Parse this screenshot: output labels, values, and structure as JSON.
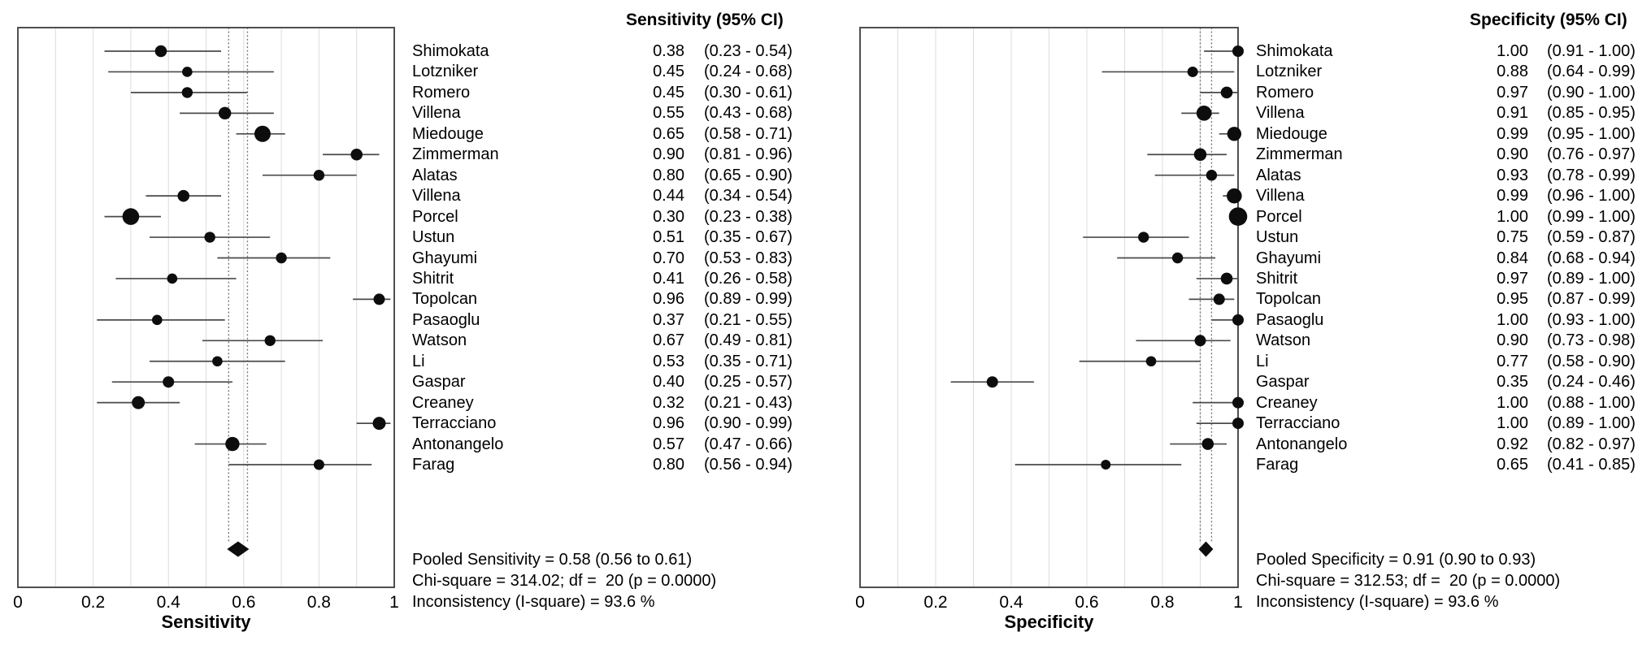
{
  "chart_data": [
    {
      "type": "forest",
      "panel": "sensitivity",
      "header": "Sensitivity (95% CI)",
      "xlabel": "Sensitivity",
      "xlim": [
        0,
        1
      ],
      "grid": true,
      "gridlines": [
        0.1,
        0.2,
        0.3,
        0.4,
        0.5,
        0.6,
        0.7,
        0.8,
        0.9
      ],
      "xticks": [
        {
          "value": 0,
          "label": "0"
        },
        {
          "value": 0.2,
          "label": "0.2"
        },
        {
          "value": 0.4,
          "label": "0.4"
        },
        {
          "value": 0.6,
          "label": "0.6"
        },
        {
          "value": 0.8,
          "label": "0.8"
        },
        {
          "value": 1,
          "label": "1"
        }
      ],
      "pooled": {
        "estimate": 0.58,
        "ci_low": 0.56,
        "ci_high": 0.61
      },
      "stats_lines": [
        "Pooled Sensitivity = 0.58 (0.56 to 0.61)",
        "Chi-square = 314.02; df =  20 (p = 0.0000)",
        "Inconsistency (I-square) = 93.6 %"
      ],
      "studies": [
        {
          "name": "Shimokata",
          "estimate": 0.38,
          "ci_low": 0.23,
          "ci_high": 0.54,
          "estimate_label": "0.38",
          "ci_label": "(0.23 - 0.54)",
          "marker_r": 7.3
        },
        {
          "name": "Lotzniker",
          "estimate": 0.45,
          "ci_low": 0.24,
          "ci_high": 0.68,
          "estimate_label": "0.45",
          "ci_label": "(0.24 - 0.68)",
          "marker_r": 6.3
        },
        {
          "name": "Romero",
          "estimate": 0.45,
          "ci_low": 0.3,
          "ci_high": 0.61,
          "estimate_label": "0.45",
          "ci_label": "(0.30 - 0.61)",
          "marker_r": 6.7
        },
        {
          "name": "Villena",
          "estimate": 0.55,
          "ci_low": 0.43,
          "ci_high": 0.68,
          "estimate_label": "0.55",
          "ci_label": "(0.43 - 0.68)",
          "marker_r": 7.7
        },
        {
          "name": "Miedouge",
          "estimate": 0.65,
          "ci_low": 0.58,
          "ci_high": 0.71,
          "estimate_label": "0.65",
          "ci_label": "(0.58 - 0.71)",
          "marker_r": 10
        },
        {
          "name": "Zimmerman",
          "estimate": 0.9,
          "ci_low": 0.81,
          "ci_high": 0.96,
          "estimate_label": "0.90",
          "ci_label": "(0.81 - 0.96)",
          "marker_r": 7.3
        },
        {
          "name": "Alatas",
          "estimate": 0.8,
          "ci_low": 0.65,
          "ci_high": 0.9,
          "estimate_label": "0.80",
          "ci_label": "(0.65 - 0.90)",
          "marker_r": 6.7
        },
        {
          "name": "Villena",
          "estimate": 0.44,
          "ci_low": 0.34,
          "ci_high": 0.54,
          "estimate_label": "0.44",
          "ci_label": "(0.34 - 0.54)",
          "marker_r": 7.3
        },
        {
          "name": "Porcel",
          "estimate": 0.3,
          "ci_low": 0.23,
          "ci_high": 0.38,
          "estimate_label": "0.30",
          "ci_label": "(0.23 - 0.38)",
          "marker_r": 10.3
        },
        {
          "name": "Ustun",
          "estimate": 0.51,
          "ci_low": 0.35,
          "ci_high": 0.67,
          "estimate_label": "0.51",
          "ci_label": "(0.35 - 0.67)",
          "marker_r": 6.7
        },
        {
          "name": "Ghayumi",
          "estimate": 0.7,
          "ci_low": 0.53,
          "ci_high": 0.83,
          "estimate_label": "0.70",
          "ci_label": "(0.53 - 0.83)",
          "marker_r": 6.7
        },
        {
          "name": "Shitrit",
          "estimate": 0.41,
          "ci_low": 0.26,
          "ci_high": 0.58,
          "estimate_label": "0.41",
          "ci_label": "(0.26 - 0.58)",
          "marker_r": 6.3
        },
        {
          "name": "Topolcan",
          "estimate": 0.96,
          "ci_low": 0.89,
          "ci_high": 0.99,
          "estimate_label": "0.96",
          "ci_label": "(0.89 - 0.99)",
          "marker_r": 7
        },
        {
          "name": "Pasaoglu",
          "estimate": 0.37,
          "ci_low": 0.21,
          "ci_high": 0.55,
          "estimate_label": "0.37",
          "ci_label": "(0.21 - 0.55)",
          "marker_r": 6.3
        },
        {
          "name": "Watson",
          "estimate": 0.67,
          "ci_low": 0.49,
          "ci_high": 0.81,
          "estimate_label": "0.67",
          "ci_label": "(0.49 - 0.81)",
          "marker_r": 6.7
        },
        {
          "name": "Li",
          "estimate": 0.53,
          "ci_low": 0.35,
          "ci_high": 0.71,
          "estimate_label": "0.53",
          "ci_label": "(0.35 - 0.71)",
          "marker_r": 6.3
        },
        {
          "name": "Gaspar",
          "estimate": 0.4,
          "ci_low": 0.25,
          "ci_high": 0.57,
          "estimate_label": "0.40",
          "ci_label": "(0.25 - 0.57)",
          "marker_r": 7
        },
        {
          "name": "Creaney",
          "estimate": 0.32,
          "ci_low": 0.21,
          "ci_high": 0.43,
          "estimate_label": "0.32",
          "ci_label": "(0.21 - 0.43)",
          "marker_r": 8
        },
        {
          "name": "Terracciano",
          "estimate": 0.96,
          "ci_low": 0.9,
          "ci_high": 0.99,
          "estimate_label": "0.96",
          "ci_label": "(0.90 - 0.99)",
          "marker_r": 8
        },
        {
          "name": "Antonangelo",
          "estimate": 0.57,
          "ci_low": 0.47,
          "ci_high": 0.66,
          "estimate_label": "0.57",
          "ci_label": "(0.47 - 0.66)",
          "marker_r": 8.7
        },
        {
          "name": "Farag",
          "estimate": 0.8,
          "ci_low": 0.56,
          "ci_high": 0.94,
          "estimate_label": "0.80",
          "ci_label": "(0.56 - 0.94)",
          "marker_r": 6.5
        }
      ]
    },
    {
      "type": "forest",
      "panel": "specificity",
      "header": "Specificity (95% CI)",
      "xlabel": "Specificity",
      "xlim": [
        0,
        1
      ],
      "grid": true,
      "gridlines": [
        0.1,
        0.2,
        0.3,
        0.4,
        0.5,
        0.6,
        0.7,
        0.8,
        0.9
      ],
      "xticks": [
        {
          "value": 0,
          "label": "0"
        },
        {
          "value": 0.2,
          "label": "0.2"
        },
        {
          "value": 0.4,
          "label": "0.4"
        },
        {
          "value": 0.6,
          "label": "0.6"
        },
        {
          "value": 0.8,
          "label": "0.8"
        },
        {
          "value": 1,
          "label": "1"
        }
      ],
      "pooled": {
        "estimate": 0.91,
        "ci_low": 0.9,
        "ci_high": 0.93
      },
      "stats_lines": [
        "Pooled Specificity = 0.91 (0.90 to 0.93)",
        "Chi-square = 312.53; df =  20 (p = 0.0000)",
        "Inconsistency (I-square) = 93.6 %"
      ],
      "studies": [
        {
          "name": "Shimokata",
          "estimate": 1.0,
          "ci_low": 0.91,
          "ci_high": 1.0,
          "estimate_label": "1.00",
          "ci_label": "(0.91 - 1.00)",
          "marker_r": 7
        },
        {
          "name": "Lotzniker",
          "estimate": 0.88,
          "ci_low": 0.64,
          "ci_high": 0.99,
          "estimate_label": "0.88",
          "ci_label": "(0.64 - 0.99)",
          "marker_r": 6.5
        },
        {
          "name": "Romero",
          "estimate": 0.97,
          "ci_low": 0.9,
          "ci_high": 1.0,
          "estimate_label": "0.97",
          "ci_label": "(0.90 - 1.00)",
          "marker_r": 7.3
        },
        {
          "name": "Villena",
          "estimate": 0.91,
          "ci_low": 0.85,
          "ci_high": 0.95,
          "estimate_label": "0.91",
          "ci_label": "(0.85 - 0.95)",
          "marker_r": 9.3
        },
        {
          "name": "Miedouge",
          "estimate": 0.99,
          "ci_low": 0.95,
          "ci_high": 1.0,
          "estimate_label": "0.99",
          "ci_label": "(0.95 - 1.00)",
          "marker_r": 8.7
        },
        {
          "name": "Zimmerman",
          "estimate": 0.9,
          "ci_low": 0.76,
          "ci_high": 0.97,
          "estimate_label": "0.90",
          "ci_label": "(0.76 - 0.97)",
          "marker_r": 7.7
        },
        {
          "name": "Alatas",
          "estimate": 0.93,
          "ci_low": 0.78,
          "ci_high": 0.99,
          "estimate_label": "0.93",
          "ci_label": "(0.78 - 0.99)",
          "marker_r": 6.7
        },
        {
          "name": "Villena",
          "estimate": 0.99,
          "ci_low": 0.96,
          "ci_high": 1.0,
          "estimate_label": "0.99",
          "ci_label": "(0.96 - 1.00)",
          "marker_r": 9.3
        },
        {
          "name": "Porcel",
          "estimate": 1.0,
          "ci_low": 0.99,
          "ci_high": 1.0,
          "estimate_label": "1.00",
          "ci_label": "(0.99 - 1.00)",
          "marker_r": 11.3
        },
        {
          "name": "Ustun",
          "estimate": 0.75,
          "ci_low": 0.59,
          "ci_high": 0.87,
          "estimate_label": "0.75",
          "ci_label": "(0.59 - 0.87)",
          "marker_r": 6.7
        },
        {
          "name": "Ghayumi",
          "estimate": 0.84,
          "ci_low": 0.68,
          "ci_high": 0.94,
          "estimate_label": "0.84",
          "ci_label": "(0.68 - 0.94)",
          "marker_r": 6.7
        },
        {
          "name": "Shitrit",
          "estimate": 0.97,
          "ci_low": 0.89,
          "ci_high": 1.0,
          "estimate_label": "0.97",
          "ci_label": "(0.89 - 1.00)",
          "marker_r": 7.3
        },
        {
          "name": "Topolcan",
          "estimate": 0.95,
          "ci_low": 0.87,
          "ci_high": 0.99,
          "estimate_label": "0.95",
          "ci_label": "(0.87 - 0.99)",
          "marker_r": 7
        },
        {
          "name": "Pasaoglu",
          "estimate": 1.0,
          "ci_low": 0.93,
          "ci_high": 1.0,
          "estimate_label": "1.00",
          "ci_label": "(0.93 - 1.00)",
          "marker_r": 7
        },
        {
          "name": "Watson",
          "estimate": 0.9,
          "ci_low": 0.73,
          "ci_high": 0.98,
          "estimate_label": "0.90",
          "ci_label": "(0.73 - 0.98)",
          "marker_r": 7
        },
        {
          "name": "Li",
          "estimate": 0.77,
          "ci_low": 0.58,
          "ci_high": 0.9,
          "estimate_label": "0.77",
          "ci_label": "(0.58 - 0.90)",
          "marker_r": 6.3
        },
        {
          "name": "Gaspar",
          "estimate": 0.35,
          "ci_low": 0.24,
          "ci_high": 0.46,
          "estimate_label": "0.35",
          "ci_label": "(0.24 - 0.46)",
          "marker_r": 7
        },
        {
          "name": "Creaney",
          "estimate": 1.0,
          "ci_low": 0.88,
          "ci_high": 1.0,
          "estimate_label": "1.00",
          "ci_label": "(0.88 - 1.00)",
          "marker_r": 7
        },
        {
          "name": "Terracciano",
          "estimate": 1.0,
          "ci_low": 0.89,
          "ci_high": 1.0,
          "estimate_label": "1.00",
          "ci_label": "(0.89 - 1.00)",
          "marker_r": 7
        },
        {
          "name": "Antonangelo",
          "estimate": 0.92,
          "ci_low": 0.82,
          "ci_high": 0.97,
          "estimate_label": "0.92",
          "ci_label": "(0.82 - 0.97)",
          "marker_r": 7.3
        },
        {
          "name": "Farag",
          "estimate": 0.65,
          "ci_low": 0.41,
          "ci_high": 0.85,
          "estimate_label": "0.65",
          "ci_label": "(0.41 - 0.85)",
          "marker_r": 6
        }
      ]
    }
  ],
  "colors": {
    "marker": "#0d0d0d",
    "diamond": "#0d0d0d",
    "frame": "#4f4f4f",
    "gridline": "#dcdcdc",
    "whisker": "#4a4a4a",
    "pooled_dashed_line": "#7a7a7a",
    "text": "#000000",
    "background": "#ffffff"
  }
}
